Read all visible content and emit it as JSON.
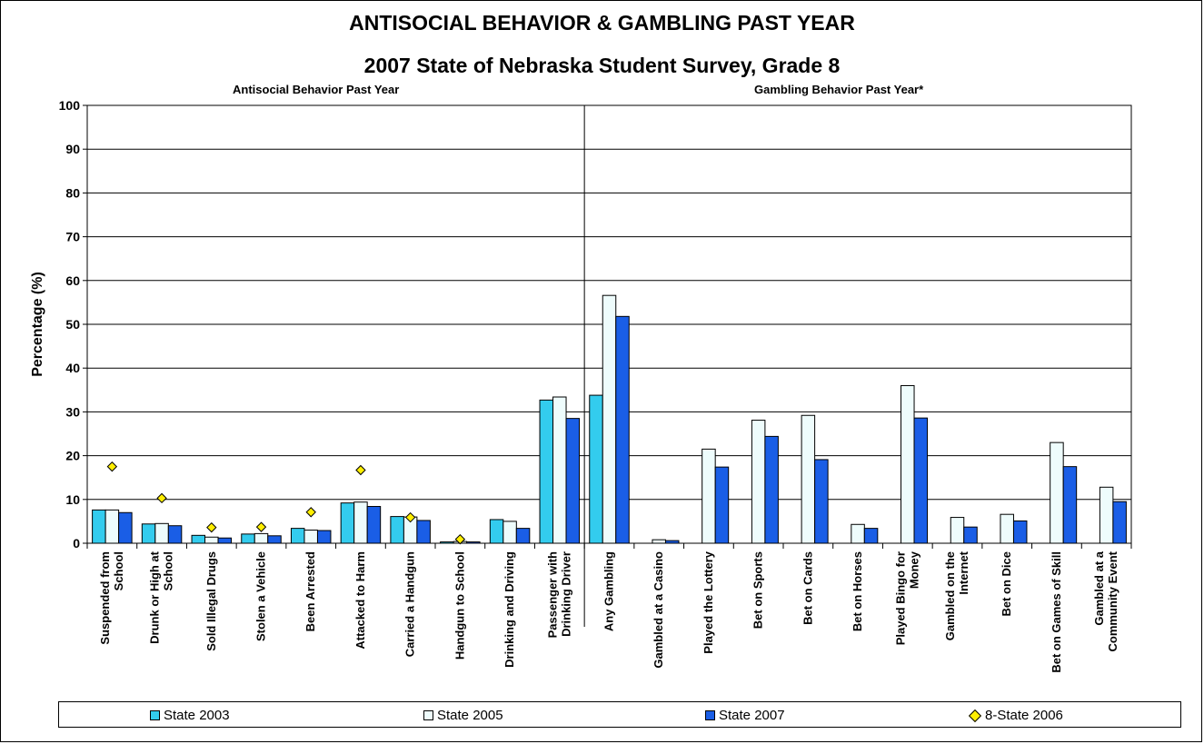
{
  "chart_data": {
    "type": "bar",
    "title": "ANTISOCIAL BEHAVIOR & GAMBLING PAST YEAR",
    "subtitle": "2007 State of Nebraska Student Survey, Grade 8",
    "section_labels": [
      "Antisocial Behavior Past Year",
      "Gambling Behavior Past Year*"
    ],
    "ylabel": "Percentage (%)",
    "ylim": [
      0,
      100
    ],
    "yticks": [
      0,
      10,
      20,
      30,
      40,
      50,
      60,
      70,
      80,
      90,
      100
    ],
    "grid": true,
    "legend_position": "bottom",
    "categories": [
      "Suspended from School",
      "Drunk or High at School",
      "Sold Illegal Drugs",
      "Stolen a Vehicle",
      "Been Arrested",
      "Attacked to Harm",
      "Carried a Handgun",
      "Handgun to School",
      "Drinking and Driving",
      "Passenger with Drinking Driver",
      "Any Gambling",
      "Gambled at a Casino",
      "Played the Lottery",
      "Bet on Sports",
      "Bet on Cards",
      "Bet on Horses",
      "Played Bingo for Money",
      "Gambled on the Internet",
      "Bet on Dice",
      "Bet on Games of Skill",
      "Gambled at a Community Event"
    ],
    "category_label_lines": [
      [
        "Suspended from",
        "School"
      ],
      [
        "Drunk or High at",
        "School"
      ],
      [
        "Sold Illegal Drugs"
      ],
      [
        "Stolen a Vehicle"
      ],
      [
        "Been Arrested"
      ],
      [
        "Attacked to Harm"
      ],
      [
        "Carried a Handgun"
      ],
      [
        "Handgun to School"
      ],
      [
        "Drinking and Driving"
      ],
      [
        "Passenger with",
        "Drinking Driver"
      ],
      [
        "Any Gambling"
      ],
      [
        "Gambled at a Casino"
      ],
      [
        "Played the Lottery"
      ],
      [
        "Bet on Sports"
      ],
      [
        "Bet on Cards"
      ],
      [
        "Bet on Horses"
      ],
      [
        "Played Bingo for",
        "Money"
      ],
      [
        "Gambled on the",
        "Internet"
      ],
      [
        "Bet on Dice"
      ],
      [
        "Bet on Games of Skill"
      ],
      [
        "Gambled at a",
        "Community Event"
      ]
    ],
    "series": [
      {
        "name": "State 2003",
        "kind": "bar",
        "color": "#33ccee",
        "values": [
          7.6,
          4.4,
          1.8,
          2.1,
          3.4,
          9.2,
          6.1,
          0.3,
          5.4,
          32.7,
          33.8,
          null,
          null,
          null,
          null,
          null,
          null,
          null,
          null,
          null,
          null
        ]
      },
      {
        "name": "State 2005",
        "kind": "bar",
        "color": "#eefcfc",
        "values": [
          7.6,
          4.5,
          1.4,
          2.2,
          3.0,
          9.4,
          6.0,
          0.4,
          5.0,
          33.4,
          56.6,
          0.8,
          21.5,
          28.1,
          29.2,
          4.3,
          36.0,
          5.9,
          6.6,
          23.0,
          12.8
        ]
      },
      {
        "name": "State 2007",
        "kind": "bar",
        "color": "#1a5ee6",
        "values": [
          7.0,
          4.0,
          1.2,
          1.7,
          2.9,
          8.4,
          5.2,
          0.3,
          3.4,
          28.5,
          51.8,
          0.6,
          17.4,
          24.4,
          19.1,
          3.4,
          28.6,
          3.7,
          5.1,
          17.5,
          9.5
        ]
      },
      {
        "name": "8-State 2006",
        "kind": "marker",
        "color": "#ffee00",
        "values": [
          17.5,
          10.3,
          3.6,
          3.7,
          7.1,
          16.7,
          5.9,
          0.9,
          null,
          null,
          null,
          null,
          null,
          null,
          null,
          null,
          null,
          null,
          null,
          null,
          null
        ]
      }
    ],
    "section_divider_after_index": 9
  }
}
